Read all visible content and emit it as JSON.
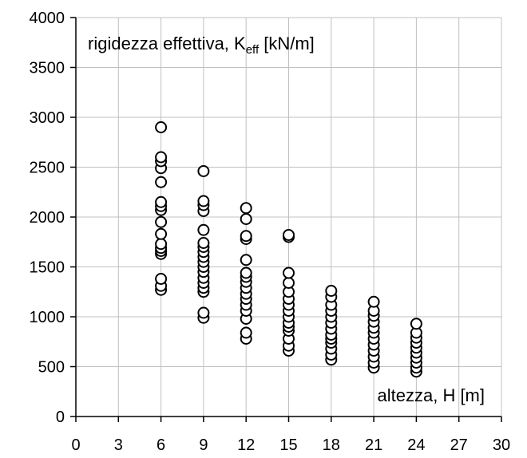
{
  "chart_data": {
    "type": "scatter",
    "title": "",
    "annotation_top": {
      "prefix": "rigidezza effettiva, K",
      "subscript": "eff",
      "suffix": " [kN/m]"
    },
    "annotation_bottom": "altezza, H [m]",
    "xlim": [
      0,
      30
    ],
    "ylim": [
      0,
      4000
    ],
    "xticks": [
      0,
      3,
      6,
      9,
      12,
      15,
      18,
      21,
      24,
      27,
      30
    ],
    "yticks": [
      0,
      500,
      1000,
      1500,
      2000,
      2500,
      3000,
      3500,
      4000
    ],
    "grid": true,
    "marker": "open-circle",
    "series": [
      {
        "points": [
          {
            "x": 6,
            "y": 1270
          },
          {
            "x": 6,
            "y": 1310
          },
          {
            "x": 6,
            "y": 1380
          },
          {
            "x": 6,
            "y": 1630
          },
          {
            "x": 6,
            "y": 1660
          },
          {
            "x": 6,
            "y": 1690
          },
          {
            "x": 6,
            "y": 1730
          },
          {
            "x": 6,
            "y": 1830
          },
          {
            "x": 6,
            "y": 1950
          },
          {
            "x": 6,
            "y": 2070
          },
          {
            "x": 6,
            "y": 2110
          },
          {
            "x": 6,
            "y": 2150
          },
          {
            "x": 6,
            "y": 2350
          },
          {
            "x": 6,
            "y": 2490
          },
          {
            "x": 6,
            "y": 2560
          },
          {
            "x": 6,
            "y": 2600
          },
          {
            "x": 6,
            "y": 2900
          },
          {
            "x": 9,
            "y": 990
          },
          {
            "x": 9,
            "y": 1040
          },
          {
            "x": 9,
            "y": 1250
          },
          {
            "x": 9,
            "y": 1290
          },
          {
            "x": 9,
            "y": 1340
          },
          {
            "x": 9,
            "y": 1390
          },
          {
            "x": 9,
            "y": 1450
          },
          {
            "x": 9,
            "y": 1500
          },
          {
            "x": 9,
            "y": 1550
          },
          {
            "x": 9,
            "y": 1600
          },
          {
            "x": 9,
            "y": 1650
          },
          {
            "x": 9,
            "y": 1700
          },
          {
            "x": 9,
            "y": 1740
          },
          {
            "x": 9,
            "y": 1870
          },
          {
            "x": 9,
            "y": 2060
          },
          {
            "x": 9,
            "y": 2120
          },
          {
            "x": 9,
            "y": 2160
          },
          {
            "x": 9,
            "y": 2460
          },
          {
            "x": 12,
            "y": 780
          },
          {
            "x": 12,
            "y": 840
          },
          {
            "x": 12,
            "y": 980
          },
          {
            "x": 12,
            "y": 1060
          },
          {
            "x": 12,
            "y": 1120
          },
          {
            "x": 12,
            "y": 1180
          },
          {
            "x": 12,
            "y": 1230
          },
          {
            "x": 12,
            "y": 1290
          },
          {
            "x": 12,
            "y": 1350
          },
          {
            "x": 12,
            "y": 1400
          },
          {
            "x": 12,
            "y": 1440
          },
          {
            "x": 12,
            "y": 1570
          },
          {
            "x": 12,
            "y": 1780
          },
          {
            "x": 12,
            "y": 1810
          },
          {
            "x": 12,
            "y": 1980
          },
          {
            "x": 12,
            "y": 2090
          },
          {
            "x": 15,
            "y": 660
          },
          {
            "x": 15,
            "y": 710
          },
          {
            "x": 15,
            "y": 780
          },
          {
            "x": 15,
            "y": 860
          },
          {
            "x": 15,
            "y": 900
          },
          {
            "x": 15,
            "y": 940
          },
          {
            "x": 15,
            "y": 1000
          },
          {
            "x": 15,
            "y": 1060
          },
          {
            "x": 15,
            "y": 1120
          },
          {
            "x": 15,
            "y": 1180
          },
          {
            "x": 15,
            "y": 1250
          },
          {
            "x": 15,
            "y": 1340
          },
          {
            "x": 15,
            "y": 1440
          },
          {
            "x": 15,
            "y": 1800
          },
          {
            "x": 15,
            "y": 1820
          },
          {
            "x": 18,
            "y": 570
          },
          {
            "x": 18,
            "y": 620
          },
          {
            "x": 18,
            "y": 680
          },
          {
            "x": 18,
            "y": 740
          },
          {
            "x": 18,
            "y": 780
          },
          {
            "x": 18,
            "y": 820
          },
          {
            "x": 18,
            "y": 880
          },
          {
            "x": 18,
            "y": 940
          },
          {
            "x": 18,
            "y": 1000
          },
          {
            "x": 18,
            "y": 1060
          },
          {
            "x": 18,
            "y": 1120
          },
          {
            "x": 18,
            "y": 1200
          },
          {
            "x": 18,
            "y": 1260
          },
          {
            "x": 21,
            "y": 490
          },
          {
            "x": 21,
            "y": 540
          },
          {
            "x": 21,
            "y": 600
          },
          {
            "x": 21,
            "y": 660
          },
          {
            "x": 21,
            "y": 720
          },
          {
            "x": 21,
            "y": 780
          },
          {
            "x": 21,
            "y": 840
          },
          {
            "x": 21,
            "y": 890
          },
          {
            "x": 21,
            "y": 950
          },
          {
            "x": 21,
            "y": 1010
          },
          {
            "x": 21,
            "y": 1060
          },
          {
            "x": 21,
            "y": 1150
          },
          {
            "x": 24,
            "y": 450
          },
          {
            "x": 24,
            "y": 490
          },
          {
            "x": 24,
            "y": 540
          },
          {
            "x": 24,
            "y": 590
          },
          {
            "x": 24,
            "y": 640
          },
          {
            "x": 24,
            "y": 690
          },
          {
            "x": 24,
            "y": 740
          },
          {
            "x": 24,
            "y": 790
          },
          {
            "x": 24,
            "y": 840
          },
          {
            "x": 24,
            "y": 930
          }
        ]
      }
    ]
  }
}
